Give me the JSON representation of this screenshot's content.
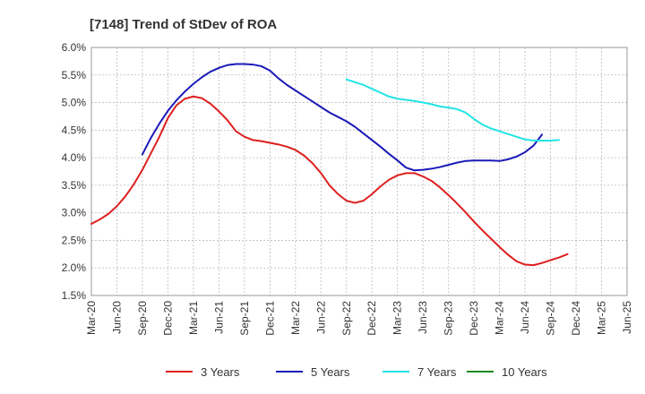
{
  "chart_data": {
    "type": "line",
    "title": "[7148]  Trend of StDev of ROA",
    "xlabel": "",
    "ylabel": "",
    "x_tick_labels": [
      "Mar-20",
      "Jun-20",
      "Sep-20",
      "Dec-20",
      "Mar-21",
      "Jun-21",
      "Sep-21",
      "Dec-21",
      "Mar-22",
      "Jun-22",
      "Sep-22",
      "Dec-22",
      "Mar-23",
      "Jun-23",
      "Sep-23",
      "Dec-23",
      "Mar-24",
      "Jun-24",
      "Sep-24",
      "Dec-24",
      "Mar-25",
      "Jun-25"
    ],
    "y_tick_labels": [
      "1.5%",
      "2.0%",
      "2.5%",
      "3.0%",
      "3.5%",
      "4.0%",
      "4.5%",
      "5.0%",
      "5.5%",
      "6.0%"
    ],
    "y_ticks": [
      1.5,
      2.0,
      2.5,
      3.0,
      3.5,
      4.0,
      4.5,
      5.0,
      5.5,
      6.0
    ],
    "ylim": [
      1.5,
      6.0
    ],
    "grid": true,
    "legend_position": "bottom",
    "series": [
      {
        "name": "3 Years",
        "color": "#dd1f1f",
        "points": [
          [
            "Mar-20",
            2.8
          ],
          [
            "Apr-20",
            2.88
          ],
          [
            "May-20",
            2.98
          ],
          [
            "Jun-20",
            3.12
          ],
          [
            "Jul-20",
            3.3
          ],
          [
            "Aug-20",
            3.52
          ],
          [
            "Sep-20",
            3.78
          ],
          [
            "Oct-20",
            4.08
          ],
          [
            "Nov-20",
            4.38
          ],
          [
            "Dec-20",
            4.72
          ],
          [
            "Jan-21",
            4.95
          ],
          [
            "Feb-21",
            5.07
          ],
          [
            "Mar-21",
            5.11
          ],
          [
            "Apr-21",
            5.08
          ],
          [
            "May-21",
            4.98
          ],
          [
            "Jun-21",
            4.84
          ],
          [
            "Jul-21",
            4.68
          ],
          [
            "Aug-21",
            4.48
          ],
          [
            "Sep-21",
            4.38
          ],
          [
            "Oct-21",
            4.32
          ],
          [
            "Nov-21",
            4.3
          ],
          [
            "Dec-21",
            4.27
          ],
          [
            "Jan-22",
            4.24
          ],
          [
            "Feb-22",
            4.2
          ],
          [
            "Mar-22",
            4.14
          ],
          [
            "Apr-22",
            4.04
          ],
          [
            "May-22",
            3.9
          ],
          [
            "Jun-22",
            3.72
          ],
          [
            "Jul-22",
            3.5
          ],
          [
            "Aug-22",
            3.34
          ],
          [
            "Sep-22",
            3.22
          ],
          [
            "Oct-22",
            3.18
          ],
          [
            "Nov-22",
            3.22
          ],
          [
            "Dec-22",
            3.34
          ],
          [
            "Jan-23",
            3.48
          ],
          [
            "Feb-23",
            3.6
          ],
          [
            "Mar-23",
            3.68
          ],
          [
            "Apr-23",
            3.72
          ],
          [
            "May-23",
            3.72
          ],
          [
            "Jun-23",
            3.66
          ],
          [
            "Jul-23",
            3.58
          ],
          [
            "Aug-23",
            3.46
          ],
          [
            "Sep-23",
            3.32
          ],
          [
            "Oct-23",
            3.17
          ],
          [
            "Nov-23",
            3.01
          ],
          [
            "Dec-23",
            2.84
          ],
          [
            "Jan-24",
            2.68
          ],
          [
            "Feb-24",
            2.53
          ],
          [
            "Mar-24",
            2.38
          ],
          [
            "Apr-24",
            2.24
          ],
          [
            "May-24",
            2.12
          ],
          [
            "Jun-24",
            2.06
          ],
          [
            "Jul-24",
            2.05
          ],
          [
            "Aug-24",
            2.09
          ],
          [
            "Sep-24",
            2.14
          ],
          [
            "Oct-24",
            2.19
          ],
          [
            "Nov-24",
            2.25
          ]
        ]
      },
      {
        "name": "5 Years",
        "color": "#1a1ab8",
        "points": [
          [
            "Sep-20",
            4.06
          ],
          [
            "Oct-20",
            4.36
          ],
          [
            "Nov-20",
            4.62
          ],
          [
            "Dec-20",
            4.85
          ],
          [
            "Jan-21",
            5.04
          ],
          [
            "Feb-21",
            5.2
          ],
          [
            "Mar-21",
            5.34
          ],
          [
            "Apr-21",
            5.46
          ],
          [
            "May-21",
            5.56
          ],
          [
            "Jun-21",
            5.63
          ],
          [
            "Jul-21",
            5.68
          ],
          [
            "Aug-21",
            5.7
          ],
          [
            "Sep-21",
            5.7
          ],
          [
            "Oct-21",
            5.69
          ],
          [
            "Nov-21",
            5.66
          ],
          [
            "Dec-21",
            5.58
          ],
          [
            "Jan-22",
            5.44
          ],
          [
            "Feb-22",
            5.32
          ],
          [
            "Mar-22",
            5.22
          ],
          [
            "Apr-22",
            5.12
          ],
          [
            "May-22",
            5.02
          ],
          [
            "Jun-22",
            4.92
          ],
          [
            "Jul-22",
            4.82
          ],
          [
            "Aug-22",
            4.74
          ],
          [
            "Sep-22",
            4.66
          ],
          [
            "Oct-22",
            4.56
          ],
          [
            "Nov-22",
            4.44
          ],
          [
            "Dec-22",
            4.32
          ],
          [
            "Jan-23",
            4.2
          ],
          [
            "Feb-23",
            4.07
          ],
          [
            "Mar-23",
            3.95
          ],
          [
            "Apr-23",
            3.82
          ],
          [
            "May-23",
            3.77
          ],
          [
            "Jun-23",
            3.78
          ],
          [
            "Jul-23",
            3.8
          ],
          [
            "Aug-23",
            3.83
          ],
          [
            "Sep-23",
            3.87
          ],
          [
            "Oct-23",
            3.91
          ],
          [
            "Nov-23",
            3.94
          ],
          [
            "Dec-23",
            3.95
          ],
          [
            "Jan-24",
            3.95
          ],
          [
            "Feb-24",
            3.95
          ],
          [
            "Mar-24",
            3.94
          ],
          [
            "Apr-24",
            3.97
          ],
          [
            "May-24",
            4.02
          ],
          [
            "Jun-24",
            4.1
          ],
          [
            "Jul-24",
            4.22
          ],
          [
            "Aug-24",
            4.42
          ]
        ]
      },
      {
        "name": "7 Years",
        "color": "#22e4e4",
        "points": [
          [
            "Sep-22",
            5.42
          ],
          [
            "Oct-22",
            5.37
          ],
          [
            "Nov-22",
            5.32
          ],
          [
            "Dec-22",
            5.25
          ],
          [
            "Jan-23",
            5.18
          ],
          [
            "Feb-23",
            5.11
          ],
          [
            "Mar-23",
            5.07
          ],
          [
            "Apr-23",
            5.05
          ],
          [
            "May-23",
            5.03
          ],
          [
            "Jun-23",
            5.0
          ],
          [
            "Jul-23",
            4.97
          ],
          [
            "Aug-23",
            4.93
          ],
          [
            "Sep-23",
            4.91
          ],
          [
            "Oct-23",
            4.88
          ],
          [
            "Nov-23",
            4.82
          ],
          [
            "Dec-23",
            4.7
          ],
          [
            "Jan-24",
            4.6
          ],
          [
            "Feb-24",
            4.53
          ],
          [
            "Mar-24",
            4.48
          ],
          [
            "Apr-24",
            4.43
          ],
          [
            "May-24",
            4.38
          ],
          [
            "Jun-24",
            4.33
          ],
          [
            "Jul-24",
            4.31
          ],
          [
            "Aug-24",
            4.31
          ],
          [
            "Sep-24",
            4.31
          ],
          [
            "Oct-24",
            4.32
          ]
        ]
      },
      {
        "name": "10 Years",
        "color": "#1e8a1e",
        "points": []
      }
    ]
  }
}
